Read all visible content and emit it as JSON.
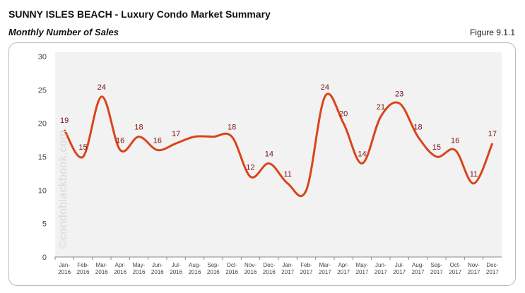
{
  "title": "SUNNY ISLES BEACH - Luxury Condo Market Summary",
  "subtitle": "Monthly Number of Sales",
  "figure": "Figure 9.1.1",
  "watermark": "©condoblackbook.com",
  "chart_data": {
    "type": "line",
    "categories": [
      "Jan-2016",
      "Feb-2016",
      "Mar-2016",
      "Apr-2016",
      "May-2016",
      "Jun-2016",
      "Jul-2016",
      "Aug-2016",
      "Sep-2016",
      "Oct-2016",
      "Nov-2016",
      "Dec-2016",
      "Jan-2017",
      "Feb-2017",
      "Mar-2017",
      "Apr-2017",
      "May-2017",
      "Jun-2017",
      "Jul-2017",
      "Aug-2017",
      "Sep-2017",
      "Oct-2017",
      "Nov-2017",
      "Dec-2017"
    ],
    "values": [
      19,
      15,
      24,
      16,
      18,
      16,
      17,
      18,
      18,
      18,
      12,
      14,
      11,
      10,
      24,
      20,
      14,
      21,
      23,
      18,
      15,
      16,
      11,
      17
    ],
    "data_labels": [
      "19",
      "15",
      "24",
      "16",
      "18",
      "16",
      "17",
      null,
      null,
      "18",
      "12",
      "14",
      "11",
      null,
      "24",
      "20",
      "14",
      "21",
      "23",
      "18",
      "15",
      "16",
      "11",
      "17"
    ],
    "ylim": [
      0,
      30
    ],
    "yticks": [
      0,
      5,
      10,
      15,
      20,
      25,
      30
    ],
    "grid": false,
    "line_color": "#d9441c",
    "label_color": "#7a1010",
    "plot_background": "#f2f2f2"
  }
}
